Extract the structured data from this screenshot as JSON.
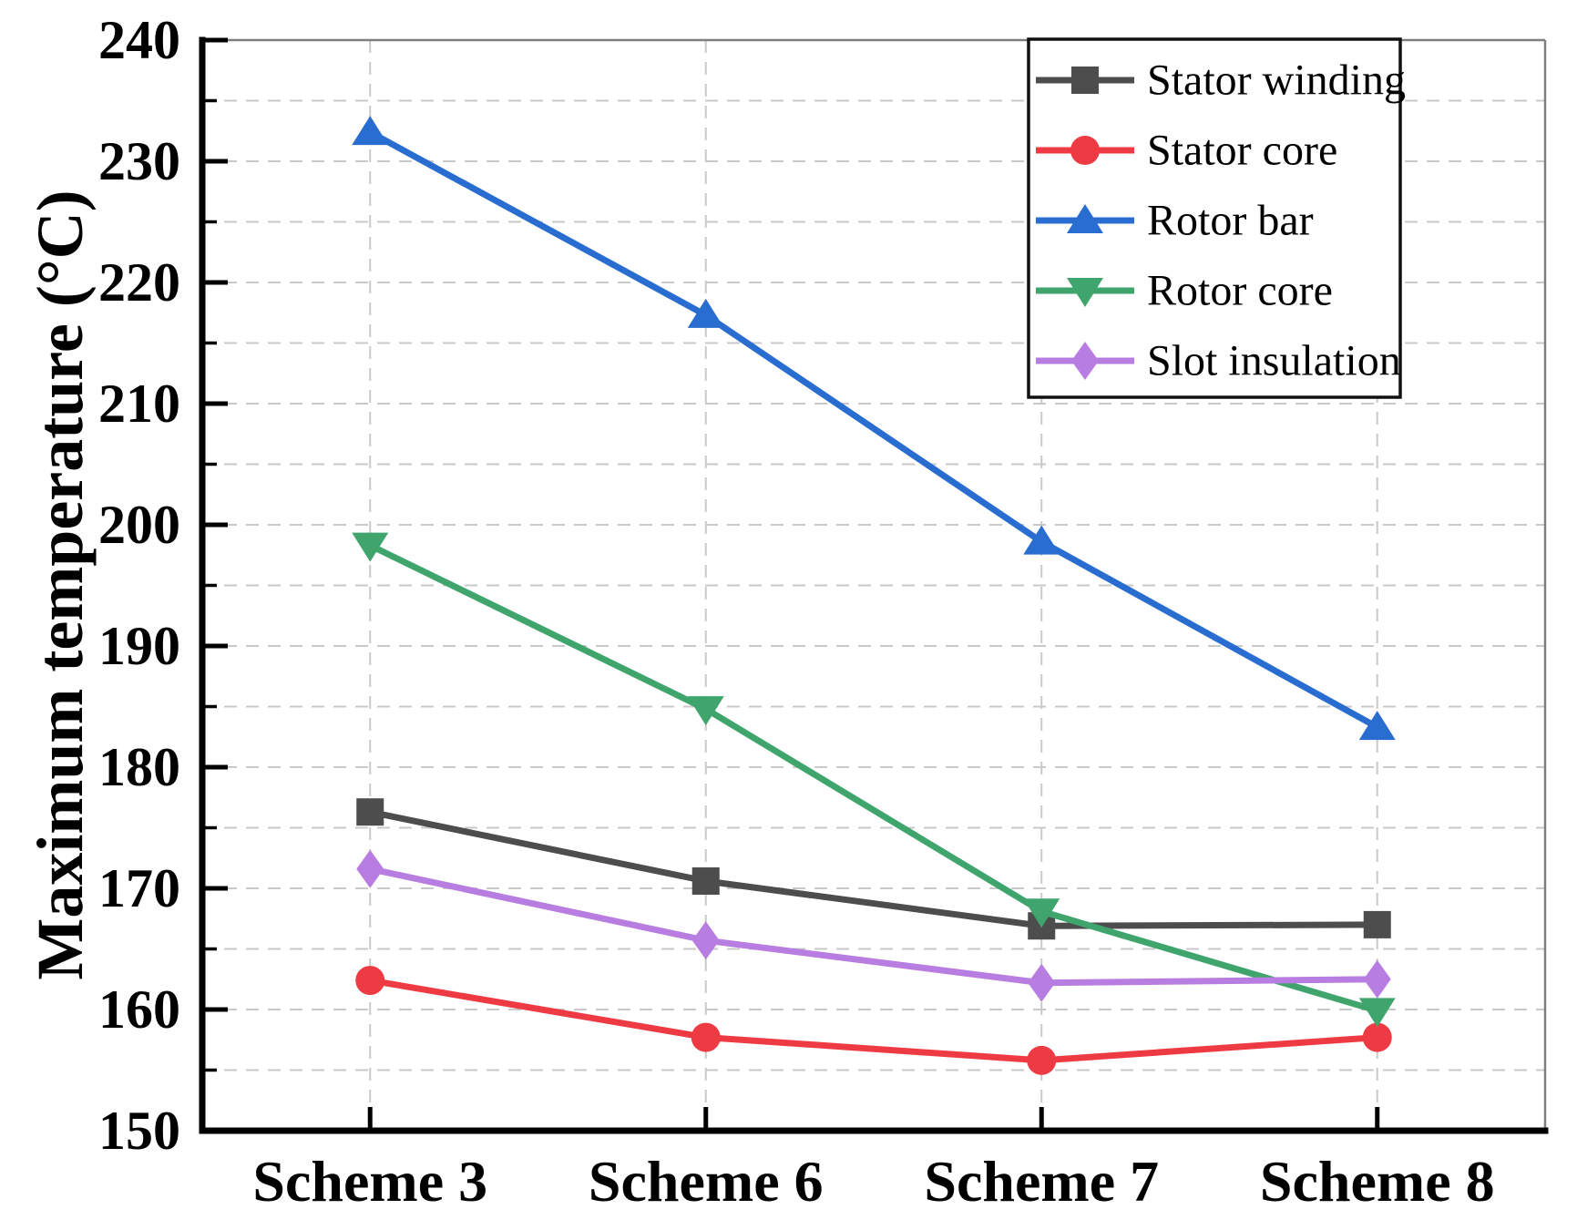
{
  "figure": {
    "kind": "line chart",
    "background": "#ffffff"
  },
  "y_axis": {
    "title": "Maximum temperature (°C)",
    "min": 150,
    "max": 240,
    "major_step": 10,
    "minor_step": 5,
    "tick_labels": [
      "150",
      "160",
      "170",
      "180",
      "190",
      "200",
      "210",
      "220",
      "230",
      "240"
    ]
  },
  "x_axis": {
    "categories": [
      "Scheme 3",
      "Scheme 6",
      "Scheme 7",
      "Scheme 8"
    ]
  },
  "legend": {
    "position": "top-right-inside",
    "border_color": "#111111",
    "background": "#ffffff"
  },
  "colors": {
    "grid": "#c9c9c9",
    "frame_top_right": "#7f7f7f",
    "axis": "#000000",
    "text": "#000000"
  },
  "chart_data": {
    "type": "line",
    "title": "",
    "xlabel": "",
    "ylabel": "Maximum temperature (°C)",
    "ylim": [
      150,
      240
    ],
    "ytick_step": 10,
    "grid": "dashed gray horizontal every 5 °C and vertical at each category",
    "legend_position": "top-right inside plot",
    "categories": [
      "Scheme 3",
      "Scheme 6",
      "Scheme 7",
      "Scheme 8"
    ],
    "series": [
      {
        "name": "Stator winding",
        "marker": "square",
        "color": "#4d4d4d",
        "values": [
          176.3,
          170.6,
          166.9,
          167.0
        ]
      },
      {
        "name": "Stator core",
        "marker": "circle",
        "color": "#ee3b43",
        "values": [
          162.4,
          157.7,
          155.8,
          157.7
        ]
      },
      {
        "name": "Rotor bar",
        "marker": "triangle-up",
        "color": "#2a6dd1",
        "values": [
          232.4,
          217.3,
          198.6,
          183.3
        ]
      },
      {
        "name": "Rotor core",
        "marker": "triangle-down",
        "color": "#3fa56c",
        "values": [
          198.3,
          184.8,
          168.1,
          159.9
        ]
      },
      {
        "name": "Slot insulation",
        "marker": "diamond",
        "color": "#b77de0",
        "values": [
          171.6,
          165.7,
          162.2,
          162.5
        ]
      }
    ]
  }
}
